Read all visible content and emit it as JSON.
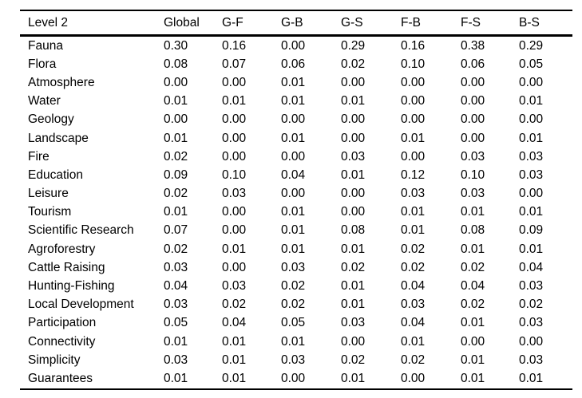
{
  "table": {
    "columns": [
      "Level 2",
      "Global",
      "G-F",
      "G-B",
      "G-S",
      "F-B",
      "F-S",
      "B-S"
    ],
    "rows": [
      {
        "label": "Fauna",
        "values": [
          "0.30",
          "0.16",
          "0.00",
          "0.29",
          "0.16",
          "0.38",
          "0.29"
        ]
      },
      {
        "label": "Flora",
        "values": [
          "0.08",
          "0.07",
          "0.06",
          "0.02",
          "0.10",
          "0.06",
          "0.05"
        ]
      },
      {
        "label": "Atmosphere",
        "values": [
          "0.00",
          "0.00",
          "0.01",
          "0.00",
          "0.00",
          "0.00",
          "0.00"
        ]
      },
      {
        "label": "Water",
        "values": [
          "0.01",
          "0.01",
          "0.01",
          "0.01",
          "0.00",
          "0.00",
          "0.01"
        ]
      },
      {
        "label": "Geology",
        "values": [
          "0.00",
          "0.00",
          "0.00",
          "0.00",
          "0.00",
          "0.00",
          "0.00"
        ]
      },
      {
        "label": "Landscape",
        "values": [
          "0.01",
          "0.00",
          "0.01",
          "0.00",
          "0.01",
          "0.00",
          "0.01"
        ]
      },
      {
        "label": "Fire",
        "values": [
          "0.02",
          "0.00",
          "0.00",
          "0.03",
          "0.00",
          "0.03",
          "0.03"
        ]
      },
      {
        "label": "Education",
        "values": [
          "0.09",
          "0.10",
          "0.04",
          "0.01",
          "0.12",
          "0.10",
          "0.03"
        ]
      },
      {
        "label": "Leisure",
        "values": [
          "0.02",
          "0.03",
          "0.00",
          "0.00",
          "0.03",
          "0.03",
          "0.00"
        ]
      },
      {
        "label": "Tourism",
        "values": [
          "0.01",
          "0.00",
          "0.01",
          "0.00",
          "0.01",
          "0.01",
          "0.01"
        ]
      },
      {
        "label": "Scientific Research",
        "values": [
          "0.07",
          "0.00",
          "0.01",
          "0.08",
          "0.01",
          "0.08",
          "0.09"
        ]
      },
      {
        "label": "Agroforestry",
        "values": [
          "0.02",
          "0.01",
          "0.01",
          "0.01",
          "0.02",
          "0.01",
          "0.01"
        ]
      },
      {
        "label": "Cattle Raising",
        "values": [
          "0.03",
          "0.00",
          "0.03",
          "0.02",
          "0.02",
          "0.02",
          "0.04"
        ]
      },
      {
        "label": "Hunting-Fishing",
        "values": [
          "0.04",
          "0.03",
          "0.02",
          "0.01",
          "0.04",
          "0.04",
          "0.03"
        ]
      },
      {
        "label": "Local Development",
        "values": [
          "0.03",
          "0.02",
          "0.02",
          "0.01",
          "0.03",
          "0.02",
          "0.02"
        ]
      },
      {
        "label": "Participation",
        "values": [
          "0.05",
          "0.04",
          "0.05",
          "0.03",
          "0.04",
          "0.01",
          "0.03"
        ]
      },
      {
        "label": "Connectivity",
        "values": [
          "0.01",
          "0.01",
          "0.01",
          "0.00",
          "0.01",
          "0.00",
          "0.00"
        ]
      },
      {
        "label": "Simplicity",
        "values": [
          "0.03",
          "0.01",
          "0.03",
          "0.02",
          "0.02",
          "0.01",
          "0.03"
        ]
      },
      {
        "label": "Guarantees",
        "values": [
          "0.01",
          "0.01",
          "0.00",
          "0.01",
          "0.00",
          "0.01",
          "0.01"
        ]
      }
    ]
  },
  "colors": {
    "text": "#000000",
    "background": "#ffffff",
    "rule": "#000000"
  }
}
